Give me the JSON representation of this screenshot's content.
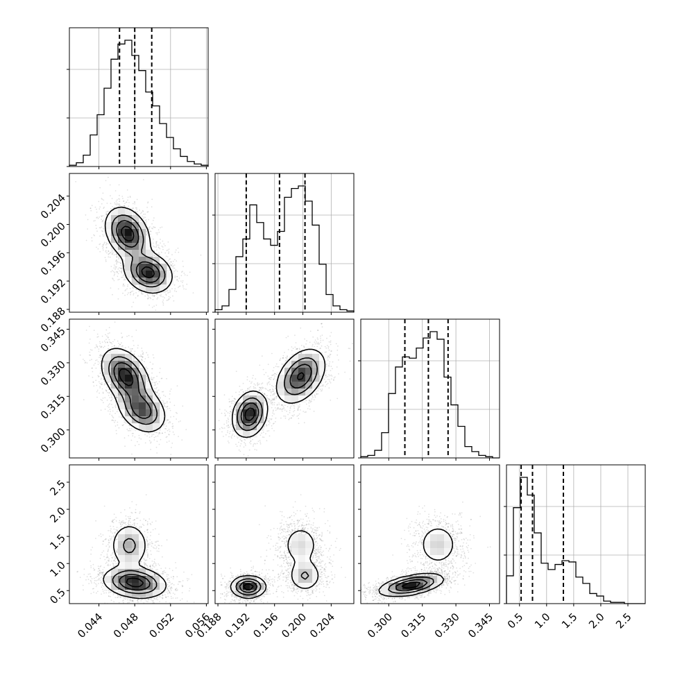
{
  "chart_data": {
    "type": "corner",
    "parameters": [
      {
        "ticks": [
          0.044,
          0.048,
          0.052,
          0.056
        ],
        "tick_labels": [
          "0.044",
          "0.048",
          "0.052",
          "0.056"
        ],
        "range": [
          0.0407,
          0.0562
        ],
        "quantiles": [
          0.0463,
          0.048,
          0.0499
        ]
      },
      {
        "ticks": [
          0.188,
          0.192,
          0.196,
          0.2,
          0.204
        ],
        "tick_labels": [
          "0.188",
          "0.192",
          "0.196",
          "0.200",
          "0.204"
        ],
        "range": [
          0.1876,
          0.2072
        ],
        "quantiles": [
          0.192,
          0.1967,
          0.2003
        ]
      },
      {
        "ticks": [
          0.3,
          0.315,
          0.33,
          0.345
        ],
        "tick_labels": [
          "0.300",
          "0.315",
          "0.330",
          "0.345"
        ],
        "range": [
          0.2875,
          0.3495
        ],
        "quantiles": [
          0.3072,
          0.3177,
          0.3265
        ]
      },
      {
        "ticks": [
          0.5,
          1.0,
          1.5,
          2.0,
          2.5
        ],
        "tick_labels": [
          "0.5",
          "1.0",
          "1.5",
          "2.0",
          "2.5"
        ],
        "range": [
          0.26,
          2.82
        ],
        "quantiles": [
          0.53,
          0.74,
          1.31
        ]
      }
    ],
    "histograms": [
      {
        "values": [
          0.01,
          0.03,
          0.09,
          0.25,
          0.41,
          0.62,
          0.85,
          0.97,
          1.0,
          0.88,
          0.76,
          0.59,
          0.48,
          0.34,
          0.23,
          0.14,
          0.08,
          0.04,
          0.02,
          0.01
        ]
      },
      {
        "values": [
          0.02,
          0.05,
          0.18,
          0.44,
          0.58,
          0.85,
          0.71,
          0.58,
          0.53,
          0.64,
          0.91,
          0.98,
          1.0,
          0.88,
          0.69,
          0.38,
          0.14,
          0.05,
          0.02,
          0.01
        ]
      },
      {
        "values": [
          0.01,
          0.02,
          0.06,
          0.2,
          0.51,
          0.72,
          0.8,
          0.79,
          0.87,
          0.95,
          1.0,
          0.94,
          0.64,
          0.42,
          0.25,
          0.09,
          0.05,
          0.02,
          0.01,
          0.0
        ]
      },
      {
        "values": [
          0.22,
          0.76,
          1.0,
          0.86,
          0.56,
          0.32,
          0.27,
          0.31,
          0.34,
          0.33,
          0.21,
          0.16,
          0.08,
          0.06,
          0.02,
          0.01,
          0.01,
          0.0,
          0.0,
          0.0
        ]
      }
    ],
    "pairs": [
      {
        "x": 0,
        "y": 1,
        "components": [
          [
            0.0472,
            0.1987,
            0.0012,
            0.0018,
            -0.3,
            0.55
          ],
          [
            0.0495,
            0.1932,
            0.0013,
            0.0014,
            -0.2,
            0.45
          ]
        ]
      },
      {
        "x": 0,
        "y": 2,
        "components": [
          [
            0.047,
            0.324,
            0.0013,
            0.006,
            -0.4,
            0.6
          ],
          [
            0.0488,
            0.309,
            0.0013,
            0.005,
            -0.3,
            0.4
          ]
        ]
      },
      {
        "x": 1,
        "y": 2,
        "components": [
          [
            0.1925,
            0.307,
            0.0012,
            0.005,
            0.2,
            0.4
          ],
          [
            0.1997,
            0.324,
            0.0017,
            0.006,
            0.4,
            0.6
          ]
        ]
      },
      {
        "x": 0,
        "y": 3,
        "components": [
          [
            0.048,
            0.65,
            0.0017,
            0.14,
            -0.2,
            0.7
          ],
          [
            0.0474,
            1.33,
            0.0011,
            0.22,
            0.0,
            0.3
          ]
        ]
      },
      {
        "x": 1,
        "y": 3,
        "components": [
          [
            0.1923,
            0.57,
            0.0012,
            0.1,
            0.0,
            0.45
          ],
          [
            0.2003,
            0.77,
            0.0012,
            0.15,
            0.0,
            0.25
          ],
          [
            0.1997,
            1.34,
            0.0015,
            0.22,
            0.0,
            0.3
          ]
        ]
      },
      {
        "x": 2,
        "y": 3,
        "components": [
          [
            0.31,
            0.6,
            0.007,
            0.1,
            0.5,
            0.7
          ],
          [
            0.322,
            1.35,
            0.005,
            0.22,
            0.0,
            0.3
          ]
        ]
      }
    ],
    "grid": true
  }
}
